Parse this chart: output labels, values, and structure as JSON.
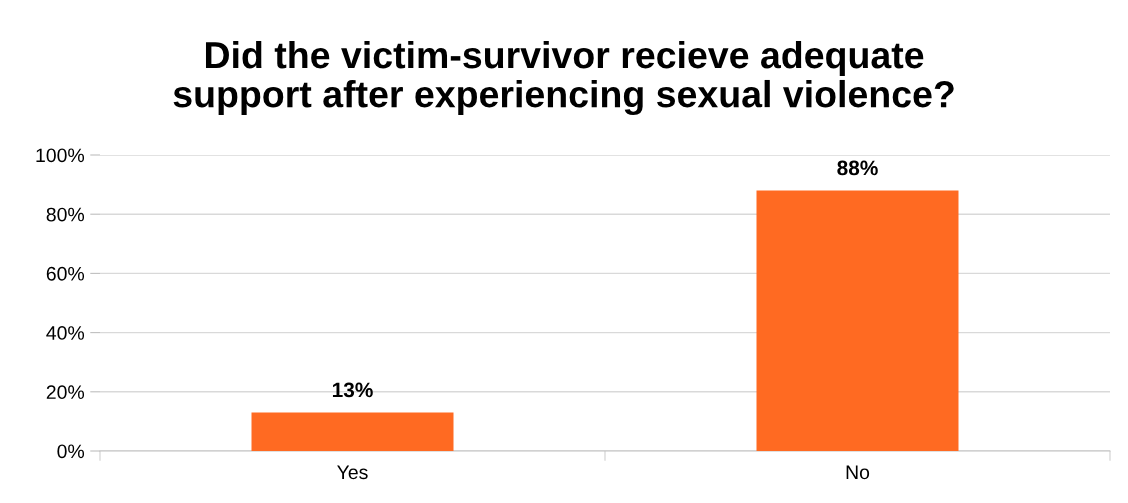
{
  "chart_data": {
    "type": "bar",
    "title": "Did the victim-survivor recieve adequate\nsupport after experiencing sexual violence?",
    "categories": [
      "Yes",
      "No"
    ],
    "values": [
      13,
      88
    ],
    "color": "#ff6a22",
    "value_labels": [
      "13%",
      "88%"
    ],
    "ylim": [
      0,
      100
    ],
    "yticks": [
      {
        "value": 0,
        "label": "0%"
      },
      {
        "value": 20,
        "label": "20%"
      },
      {
        "value": 40,
        "label": "40%"
      },
      {
        "value": 60,
        "label": "60%"
      },
      {
        "value": 80,
        "label": "80%"
      },
      {
        "value": 100,
        "label": "100%"
      }
    ],
    "grid": "y",
    "legend": false
  }
}
